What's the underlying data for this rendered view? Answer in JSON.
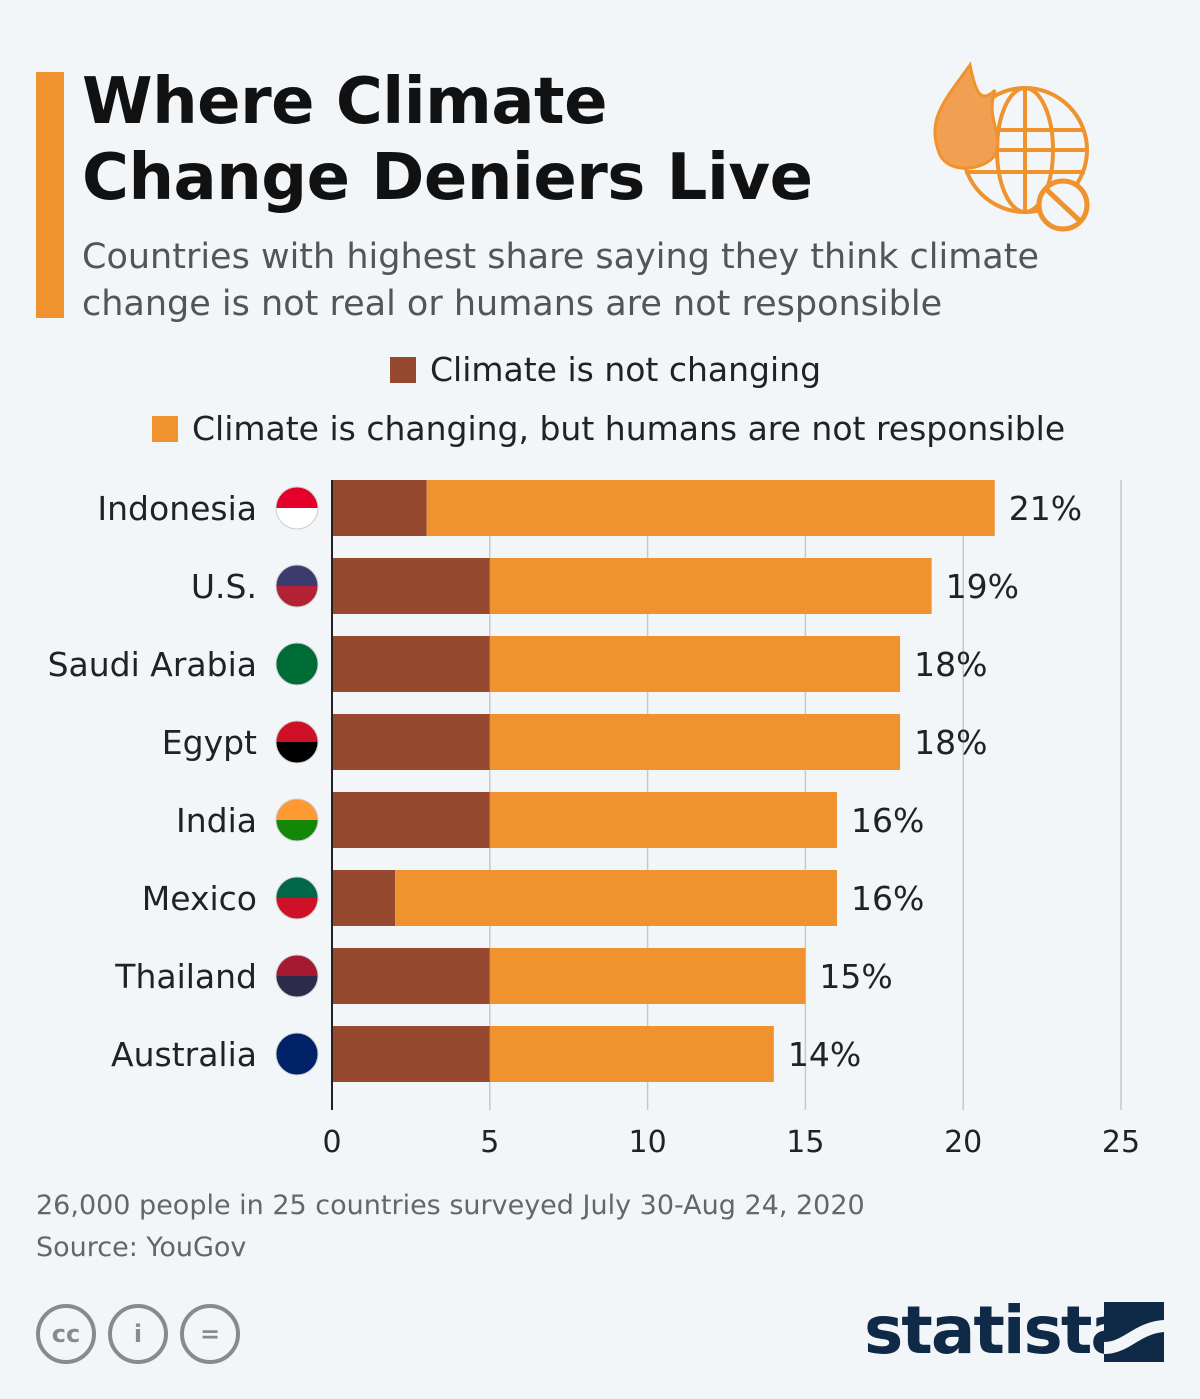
{
  "title_line1": "Where Climate",
  "title_line2": "Change Deniers Live",
  "subtitle": "Countries with highest share saying they think climate change is not real or humans are not responsible",
  "footer": {
    "note": "26,000 people in 25 countries surveyed July 30-Aug 24, 2020",
    "source": "Source: YouGov",
    "brand": "statista",
    "license_icons": [
      "cc",
      "by",
      "nd"
    ]
  },
  "colors": {
    "not_changing": "#96492f",
    "not_humans": "#f0922d",
    "accent": "#f0922d"
  },
  "chart_data": {
    "type": "bar",
    "orientation": "horizontal",
    "stacked": true,
    "categories": [
      "Indonesia",
      "U.S.",
      "Saudi Arabia",
      "Egypt",
      "India",
      "Mexico",
      "Thailand",
      "Australia"
    ],
    "series": [
      {
        "name": "Climate is not changing",
        "values": [
          3,
          5,
          5,
          5,
          5,
          2,
          5,
          5
        ]
      },
      {
        "name": "Climate is changing, but humans are not responsible",
        "values": [
          18,
          14,
          13,
          13,
          11,
          14,
          10,
          9
        ]
      }
    ],
    "totals": [
      21,
      19,
      18,
      18,
      16,
      16,
      15,
      14
    ],
    "data_labels": [
      "21%",
      "19%",
      "18%",
      "18%",
      "16%",
      "16%",
      "15%",
      "14%"
    ],
    "xlim": [
      0,
      25
    ],
    "xticks": [
      "0",
      "5",
      "10",
      "15",
      "20",
      "25"
    ],
    "grid": true,
    "legend_placement": "top"
  }
}
